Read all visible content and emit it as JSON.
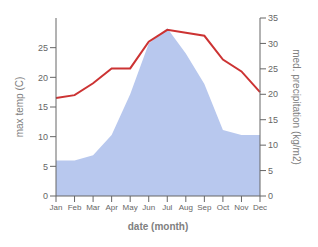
{
  "chart_data": {
    "type": "line",
    "categories": [
      "Jan",
      "Feb",
      "Mar",
      "Apr",
      "May",
      "Jun",
      "Jul",
      "Aug",
      "Sep",
      "Oct",
      "Nov",
      "Dec"
    ],
    "xlabel": "date (month)",
    "ylabel": "max temp (C)",
    "y2label": "med. precipitation (kg/m2)",
    "ylim": [
      0,
      30
    ],
    "yticks": [
      0,
      5,
      10,
      15,
      20,
      25
    ],
    "y2lim": [
      0,
      35
    ],
    "y2ticks": [
      0,
      5,
      10,
      15,
      20,
      25,
      30,
      35
    ],
    "grid": false,
    "series": [
      {
        "type": "area",
        "axis": "y2",
        "color": "#b8c8ee",
        "values": [
          7.0,
          7.0,
          8.0,
          12.0,
          20.0,
          30.0,
          33.0,
          28.0,
          22.0,
          13.0,
          12.0,
          12.0
        ]
      },
      {
        "type": "line",
        "color": "#cc3333",
        "values": [
          16.5,
          17.0,
          19.0,
          21.5,
          21.5,
          26.0,
          28.0,
          27.5,
          27.0,
          23.0,
          21.0,
          17.5
        ]
      }
    ]
  }
}
